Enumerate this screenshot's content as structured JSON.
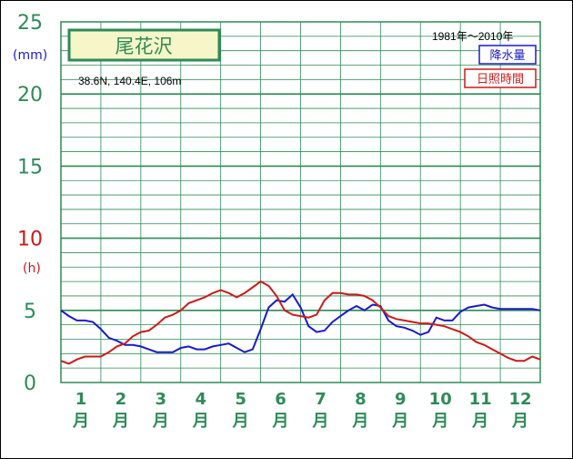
{
  "chart_data": {
    "type": "line",
    "title": "尾花沢",
    "location": "38.6N,  140.4E,  106m",
    "period": "1981年～2010年",
    "ylabel_left": "(mm)",
    "ylabel_left2": "(h)",
    "yticks": [
      "0",
      "5",
      "10",
      "15",
      "20",
      "25"
    ],
    "ylim": [
      0,
      25
    ],
    "months": [
      "1",
      "2",
      "3",
      "4",
      "5",
      "6",
      "7",
      "8",
      "9",
      "10",
      "11",
      "12"
    ],
    "month_suffix": "月",
    "xlim": [
      0.5,
      12.5
    ],
    "grid": true,
    "legend_position": "top-right",
    "series": [
      {
        "name": "降水量",
        "color": "#1a1acc",
        "x": [
          0.5,
          0.7,
          0.9,
          1.1,
          1.3,
          1.5,
          1.7,
          1.9,
          2.1,
          2.3,
          2.5,
          2.7,
          2.9,
          3.1,
          3.3,
          3.5,
          3.7,
          3.9,
          4.1,
          4.3,
          4.5,
          4.7,
          4.9,
          5.1,
          5.3,
          5.5,
          5.7,
          5.9,
          6.1,
          6.3,
          6.5,
          6.7,
          6.9,
          7.1,
          7.3,
          7.5,
          7.7,
          7.9,
          8.1,
          8.3,
          8.5,
          8.7,
          8.9,
          9.1,
          9.3,
          9.5,
          9.7,
          9.9,
          10.1,
          10.3,
          10.5,
          10.7,
          10.9,
          11.1,
          11.3,
          11.5,
          11.7,
          11.9,
          12.1,
          12.3,
          12.5
        ],
        "values": [
          5.0,
          4.6,
          4.3,
          4.3,
          4.2,
          3.7,
          3.1,
          2.9,
          2.6,
          2.6,
          2.5,
          2.3,
          2.1,
          2.1,
          2.1,
          2.4,
          2.5,
          2.3,
          2.3,
          2.5,
          2.6,
          2.7,
          2.4,
          2.1,
          2.3,
          3.7,
          5.2,
          5.7,
          5.6,
          6.1,
          5.2,
          3.9,
          3.5,
          3.6,
          4.2,
          4.6,
          5.0,
          5.3,
          5.0,
          5.4,
          5.3,
          4.3,
          3.9,
          3.8,
          3.6,
          3.3,
          3.5,
          4.5,
          4.3,
          4.3,
          4.9,
          5.2,
          5.3,
          5.4,
          5.2,
          5.1,
          5.1,
          5.1,
          5.1,
          5.1,
          5.0
        ]
      },
      {
        "name": "日照時間",
        "color": "#cc1a1a",
        "x": [
          0.5,
          0.7,
          0.9,
          1.1,
          1.3,
          1.5,
          1.7,
          1.9,
          2.1,
          2.3,
          2.5,
          2.7,
          2.9,
          3.1,
          3.3,
          3.5,
          3.7,
          3.9,
          4.1,
          4.3,
          4.5,
          4.7,
          4.9,
          5.1,
          5.3,
          5.5,
          5.7,
          5.9,
          6.1,
          6.3,
          6.5,
          6.7,
          6.9,
          7.1,
          7.3,
          7.5,
          7.7,
          7.9,
          8.1,
          8.3,
          8.5,
          8.7,
          8.9,
          9.1,
          9.3,
          9.5,
          9.7,
          9.9,
          10.1,
          10.3,
          10.5,
          10.7,
          10.9,
          11.1,
          11.3,
          11.5,
          11.7,
          11.9,
          12.1,
          12.3,
          12.5
        ],
        "values": [
          1.5,
          1.3,
          1.6,
          1.8,
          1.8,
          1.8,
          2.1,
          2.5,
          2.7,
          3.2,
          3.5,
          3.6,
          4.0,
          4.5,
          4.7,
          5.0,
          5.5,
          5.7,
          5.9,
          6.2,
          6.4,
          6.2,
          5.9,
          6.2,
          6.6,
          7.0,
          6.7,
          6.0,
          5.0,
          4.7,
          4.6,
          4.5,
          4.7,
          5.7,
          6.2,
          6.2,
          6.1,
          6.1,
          6.0,
          5.7,
          5.2,
          4.6,
          4.4,
          4.3,
          4.2,
          4.1,
          4.1,
          4.0,
          3.9,
          3.7,
          3.5,
          3.2,
          2.8,
          2.6,
          2.3,
          2.0,
          1.7,
          1.5,
          1.5,
          1.8,
          1.6
        ]
      }
    ]
  }
}
